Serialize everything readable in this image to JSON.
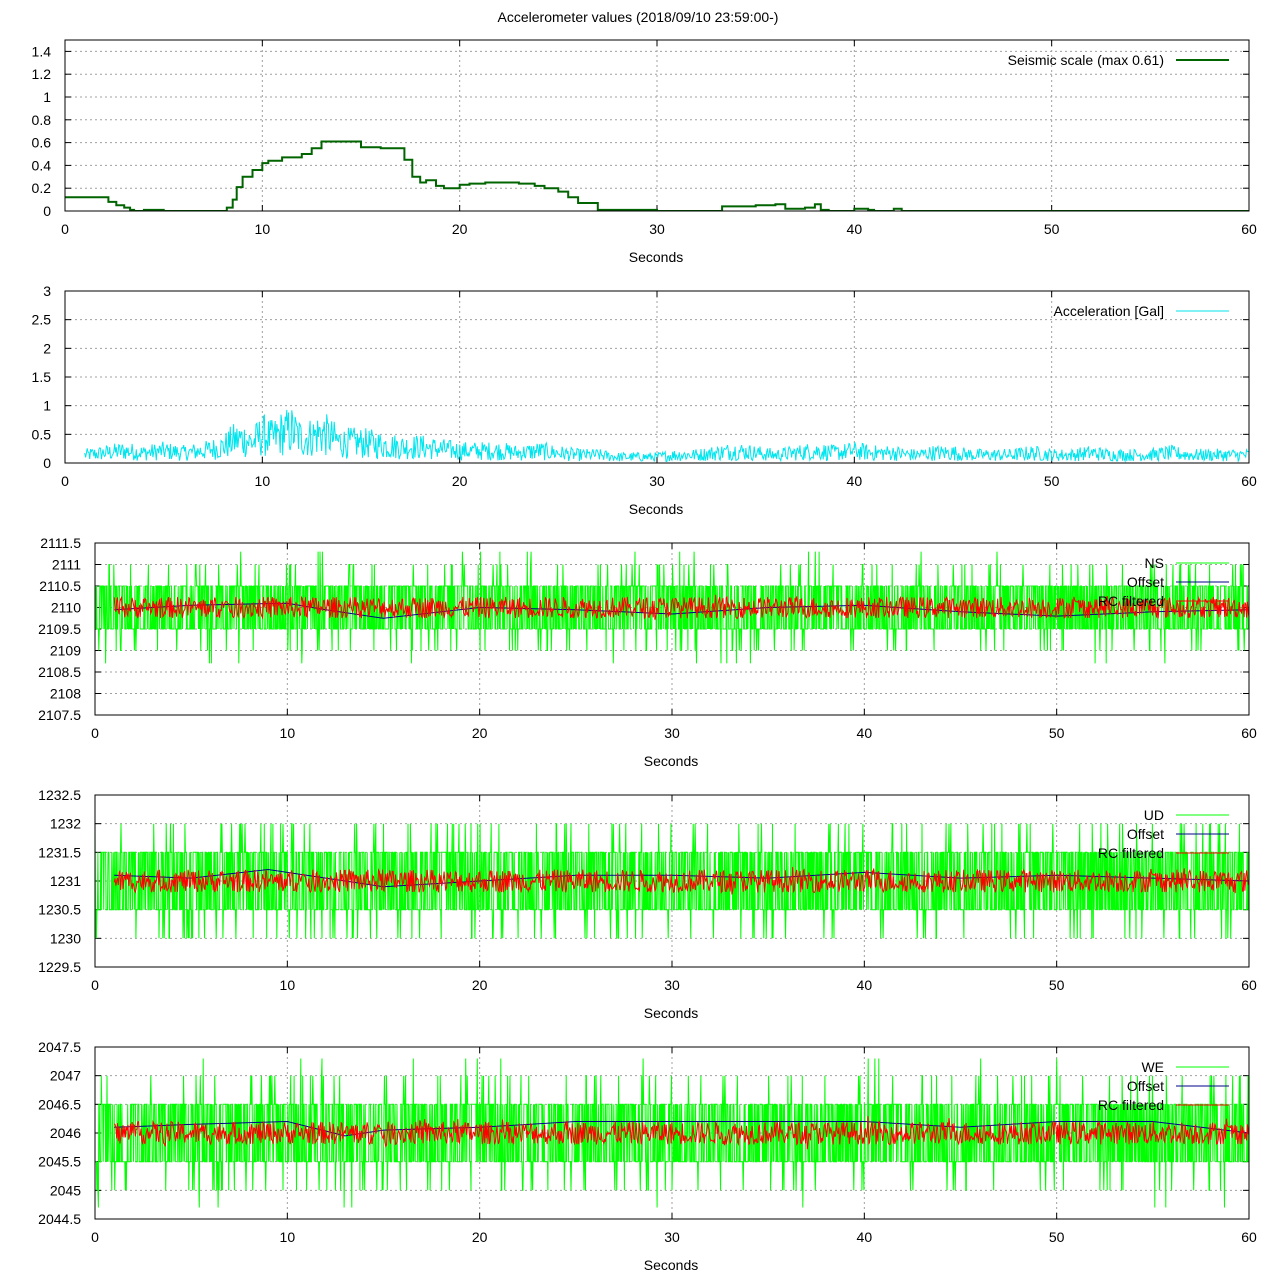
{
  "title": "Accelerometer values (2018/09/10 23:59:00-)",
  "chart_data": [
    {
      "type": "line",
      "xlabel": "Seconds",
      "ylabel": "",
      "xlim": [
        0,
        60
      ],
      "ylim": [
        0,
        1.5
      ],
      "xticks": [
        "0",
        "10",
        "20",
        "30",
        "40",
        "50",
        "60"
      ],
      "yticks": [
        "0",
        "0.2",
        "0.4",
        "0.6",
        "0.8",
        "1",
        "1.2",
        "1.4"
      ],
      "grid": true,
      "legend_position": "top-right",
      "series": [
        {
          "name": "Seismic scale (max 0.61)",
          "color": "#006400",
          "style": "step",
          "x": [
            0,
            1,
            2.2,
            2.6,
            3,
            3.3,
            3.5,
            4,
            5,
            8,
            8.2,
            8.5,
            8.7,
            9,
            9.5,
            10,
            10.3,
            11,
            12,
            12.5,
            13,
            15,
            16,
            17.2,
            17.6,
            18,
            18.3,
            18.8,
            19.2,
            20,
            20.5,
            21.3,
            22,
            23,
            23.8,
            24.3,
            25,
            25.5,
            26,
            27,
            29,
            30,
            31,
            33,
            33.3,
            35,
            36,
            36.5,
            37.5,
            38,
            38.3,
            38.7,
            40,
            40.7,
            41,
            41.5,
            42,
            42.4,
            45,
            50,
            55,
            60
          ],
          "y": [
            0.12,
            0.12,
            0.08,
            0.05,
            0.03,
            0.01,
            0,
            0.01,
            0,
            0,
            0.03,
            0.1,
            0.21,
            0.3,
            0.36,
            0.42,
            0.44,
            0.47,
            0.5,
            0.55,
            0.61,
            0.56,
            0.55,
            0.45,
            0.3,
            0.25,
            0.27,
            0.22,
            0.2,
            0.23,
            0.24,
            0.25,
            0.25,
            0.24,
            0.22,
            0.2,
            0.17,
            0.12,
            0.07,
            0.01,
            0.01,
            0,
            0,
            0,
            0.04,
            0.05,
            0.06,
            0.02,
            0.03,
            0.06,
            0.01,
            0,
            0.02,
            0.01,
            0,
            0,
            0.02,
            0,
            0,
            0,
            0,
            0
          ]
        }
      ]
    },
    {
      "type": "line",
      "xlabel": "Seconds",
      "ylabel": "",
      "xlim": [
        0,
        60
      ],
      "ylim": [
        0,
        3
      ],
      "xticks": [
        "0",
        "10",
        "20",
        "30",
        "40",
        "50",
        "60"
      ],
      "yticks": [
        "0",
        "0.5",
        "1",
        "1.5",
        "2",
        "2.5",
        "3"
      ],
      "grid": true,
      "legend_position": "top-right",
      "series": [
        {
          "name": "Acceleration [Gal]",
          "color": "#00e5ee",
          "x": [
            1,
            2,
            3,
            4,
            5,
            6,
            7,
            8,
            8.5,
            9,
            9.5,
            10,
            10.5,
            11,
            11.5,
            12,
            12.5,
            13,
            14,
            15,
            16,
            17,
            18,
            19,
            20,
            21,
            22,
            23,
            24,
            25,
            26,
            27,
            28,
            29,
            30,
            31,
            32,
            33,
            34,
            35,
            36,
            37,
            38,
            39,
            40,
            41,
            42,
            43,
            44,
            45,
            46,
            47,
            48,
            49,
            50,
            51,
            52,
            53,
            54,
            55,
            56,
            57,
            58,
            59,
            60
          ],
          "y": [
            0.2,
            0.25,
            0.3,
            0.25,
            0.3,
            0.25,
            0.3,
            0.4,
            0.55,
            0.6,
            0.5,
            0.7,
            0.6,
            0.75,
            0.8,
            0.6,
            0.65,
            0.75,
            0.5,
            0.5,
            0.45,
            0.4,
            0.4,
            0.35,
            0.3,
            0.3,
            0.3,
            0.25,
            0.3,
            0.25,
            0.2,
            0.2,
            0.15,
            0.15,
            0.15,
            0.2,
            0.2,
            0.25,
            0.3,
            0.25,
            0.2,
            0.25,
            0.3,
            0.25,
            0.3,
            0.25,
            0.25,
            0.2,
            0.25,
            0.25,
            0.2,
            0.2,
            0.2,
            0.25,
            0.2,
            0.2,
            0.25,
            0.2,
            0.2,
            0.2,
            0.25,
            0.2,
            0.2,
            0.2,
            0.2
          ]
        }
      ]
    },
    {
      "type": "line",
      "xlabel": "Seconds",
      "ylabel": "",
      "xlim": [
        0,
        60
      ],
      "ylim": [
        2107.5,
        2111.5
      ],
      "xticks": [
        "0",
        "10",
        "20",
        "30",
        "40",
        "50",
        "60"
      ],
      "yticks": [
        "2107.5",
        "2108",
        "2108.5",
        "2109",
        "2109.5",
        "2110",
        "2110.5",
        "2111",
        "2111.5"
      ],
      "grid": true,
      "legend_position": "top-right",
      "series": [
        {
          "name": "NS",
          "color": "#00ff00",
          "center": 2110,
          "band": 0.5,
          "spikes": 1.3
        },
        {
          "name": "Offset",
          "color": "#00008b",
          "x": [
            1,
            5,
            10,
            12,
            15,
            20,
            25,
            30,
            35,
            40,
            45,
            50,
            55,
            60
          ],
          "y": [
            2109.95,
            2110.05,
            2110.1,
            2109.95,
            2109.75,
            2110.0,
            2109.95,
            2109.85,
            2110.0,
            2110.05,
            2109.9,
            2109.8,
            2109.9,
            2109.95
          ]
        },
        {
          "name": "RC filtered",
          "color": "#ff0000",
          "center": 2110,
          "band": 0.25,
          "spikes": 0.3
        }
      ]
    },
    {
      "type": "line",
      "xlabel": "Seconds",
      "ylabel": "",
      "xlim": [
        0,
        60
      ],
      "ylim": [
        1229.5,
        1232.5
      ],
      "xticks": [
        "0",
        "10",
        "20",
        "30",
        "40",
        "50",
        "60"
      ],
      "yticks": [
        "1229.5",
        "1230",
        "1230.5",
        "1231",
        "1231.5",
        "1232",
        "1232.5"
      ],
      "grid": true,
      "legend_position": "top-right",
      "series": [
        {
          "name": "UD",
          "color": "#00ff00",
          "center": 1231,
          "band": 0.5,
          "spikes": 1.0
        },
        {
          "name": "Offset",
          "color": "#00008b",
          "x": [
            1,
            5,
            9,
            10,
            15,
            20,
            25,
            30,
            35,
            40,
            45,
            50,
            55,
            60
          ],
          "y": [
            1231.1,
            1231.05,
            1231.2,
            1231.15,
            1230.9,
            1231.0,
            1231.1,
            1231.1,
            1231.05,
            1231.15,
            1231.05,
            1231.1,
            1231.05,
            1231.0
          ]
        },
        {
          "name": "RC filtered",
          "color": "#ff0000",
          "center": 1231,
          "band": 0.2,
          "spikes": 0.25
        }
      ]
    },
    {
      "type": "line",
      "xlabel": "Seconds",
      "ylabel": "",
      "xlim": [
        0,
        60
      ],
      "ylim": [
        2044.5,
        2047.5
      ],
      "xticks": [
        "0",
        "10",
        "20",
        "30",
        "40",
        "50",
        "60"
      ],
      "yticks": [
        "2044.5",
        "2045",
        "2045.5",
        "2046",
        "2046.5",
        "2047",
        "2047.5"
      ],
      "grid": true,
      "legend_position": "top-right",
      "series": [
        {
          "name": "WE",
          "color": "#00ff00",
          "center": 2046,
          "band": 0.5,
          "spikes": 1.3
        },
        {
          "name": "Offset",
          "color": "#00008b",
          "x": [
            1,
            5,
            10,
            13,
            15,
            20,
            25,
            30,
            35,
            40,
            45,
            50,
            55,
            60
          ],
          "y": [
            2046.1,
            2046.15,
            2046.2,
            2045.95,
            2046.05,
            2046.1,
            2046.2,
            2046.2,
            2046.2,
            2046.2,
            2046.1,
            2046.2,
            2046.2,
            2046.0
          ]
        },
        {
          "name": "RC filtered",
          "color": "#ff0000",
          "center": 2046,
          "band": 0.2,
          "spikes": 0.3
        }
      ]
    }
  ]
}
